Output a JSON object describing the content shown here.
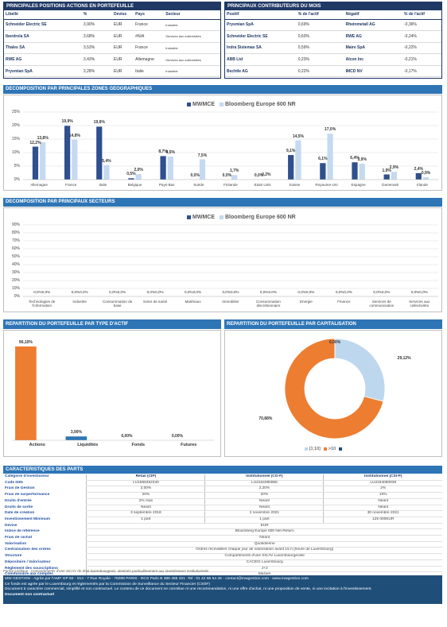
{
  "positions": {
    "title": "PRINCIPALES POSITIONS ACTIONS EN PORTEFEUILLE",
    "columns": [
      "Libellé",
      "%",
      "Devise",
      "Pays",
      "Secteur"
    ],
    "rows": [
      [
        "Schneider Electric SE",
        "3,90%",
        "EUR",
        "France",
        "Industrie"
      ],
      [
        "Iberdrola SA",
        "3,68%",
        "EUR",
        "#N/A",
        "Services aux collectivités"
      ],
      [
        "Thales SA",
        "3,53%",
        "EUR",
        "France",
        "Industrie"
      ],
      [
        "RWE AG",
        "3,43%",
        "EUR",
        "Allemagne",
        "Services aux collectivités"
      ],
      [
        "Prysmian SpA",
        "3,28%",
        "EUR",
        "Italie",
        "Industrie"
      ]
    ]
  },
  "contributors": {
    "title": "PRINCIPAUX CONTRIBUTEURS DU MOIS",
    "columns": [
      "Positif",
      "% de l'actif",
      "Négatif",
      "% de l'actif"
    ],
    "rows": [
      [
        "Prysmian SpA",
        "0,69%",
        "Rheinmetall AG",
        "-0,36%"
      ],
      [
        "Schneider Electric SE",
        "0,60%",
        "RWE AG",
        "-0,24%"
      ],
      [
        "Indra Sistemas SA",
        "0,59%",
        "Maire SpA",
        "-0,22%"
      ],
      [
        "ABB Ltd",
        "0,23%",
        "Alcon Inc",
        "-0,21%"
      ],
      [
        "Bechtle AG",
        "0,22%",
        "IMCD NV",
        "-0,17%"
      ]
    ]
  },
  "chart_data": [
    {
      "type": "bar",
      "title": "DECOMPOSITION PAR PRINCIPALES ZONES GEOGRAPHIQUES",
      "grid": true,
      "categories": [
        "Allemagne",
        "France",
        "Italie",
        "Belgique",
        "Pays-Bas",
        "Suède",
        "Finlande",
        "Etats Unis",
        "Suisse",
        "Royaume-Uni",
        "Espagne",
        "Danemark",
        "Irlande"
      ],
      "series": [
        {
          "name": "MWMCE",
          "color": "#2f4f8f",
          "values": [
            12.2,
            19.9,
            19.6,
            0.5,
            8.7,
            0.0,
            0.0,
            0.0,
            9.1,
            6.1,
            6.4,
            1.9,
            2.4
          ],
          "value_labels": [
            "12,2%",
            "19,9%",
            "19,6%",
            "0,5%",
            "8,7%",
            "0,0%",
            "0,0%",
            "0,0%",
            "9,1%",
            "6,1%",
            "6,4%",
            "1,9%",
            "2,4%"
          ]
        },
        {
          "name": "Bloomberg Europe 600 NR",
          "color": "#c5d9f1",
          "values": [
            13.8,
            14.8,
            5.4,
            2.0,
            8.5,
            7.5,
            1.7,
            0.2,
            14.5,
            17.0,
            5.9,
            2.9,
            0.9
          ],
          "value_labels": [
            "13,8%",
            "14,8%",
            "5,4%",
            "2,0%",
            "8,5%",
            "7,5%",
            "1,7%",
            "0,2%",
            "14,5%",
            "17,0%",
            "5,9%",
            "2,9%",
            "0,9%"
          ]
        }
      ],
      "ylim": [
        0,
        25
      ],
      "yticks": [
        {
          "value": 0,
          "label": "0%"
        },
        {
          "value": 5,
          "label": "5%"
        },
        {
          "value": 10,
          "label": "10%"
        },
        {
          "value": 15,
          "label": "15%"
        },
        {
          "value": 20,
          "label": "20%"
        },
        {
          "value": 25,
          "label": "25%"
        }
      ]
    },
    {
      "type": "bar",
      "title": "DECOMPOSITION PAR PRINCIPAUX SECTEURS",
      "grid": true,
      "categories": [
        "Technologies de l'information",
        "Industrie",
        "Consommation de base",
        "Soins de santé",
        "Matériaux",
        "Immobilier",
        "Consommation discrétionnaire",
        "Energie",
        "Finance",
        "Services de communication",
        "Services aux collectivités"
      ],
      "series": [
        {
          "name": "MWMCE",
          "color": "#2f4f8f",
          "values": [
            0,
            0,
            0,
            0,
            0,
            0,
            0,
            0,
            0,
            0,
            0
          ],
          "value_labels": [
            "0,0%",
            "0,0%",
            "0,0%",
            "0,0%",
            "0,0%",
            "0,0%",
            "0,0%",
            "0,0%",
            "0,0%",
            "0,0%",
            "0,0%"
          ]
        },
        {
          "name": "Bloomberg Europe 600 NR",
          "color": "#c5d9f1",
          "values": [
            0,
            0,
            0,
            0,
            0,
            0,
            0,
            0,
            0,
            0,
            0
          ],
          "value_labels": [
            "0,0%",
            "0,0%",
            "0,0%",
            "0,0%",
            "0,0%",
            "0,0%",
            "0,0%",
            "0,0%",
            "0,0%",
            "0,0%",
            "0,0%"
          ]
        }
      ],
      "ylim": [
        0,
        90
      ],
      "yticks": [
        {
          "value": 0,
          "label": "0%"
        },
        {
          "value": 10,
          "label": "10%"
        },
        {
          "value": 20,
          "label": "20%"
        },
        {
          "value": 30,
          "label": "30%"
        },
        {
          "value": 40,
          "label": "40%"
        },
        {
          "value": 50,
          "label": "50%"
        },
        {
          "value": 60,
          "label": "60%"
        },
        {
          "value": 70,
          "label": "70%"
        },
        {
          "value": 80,
          "label": "80%"
        },
        {
          "value": 90,
          "label": "90%"
        }
      ]
    },
    {
      "type": "bar",
      "title": "REPARTITION DU PORTEFEUILLE PAR TYPE D'ACTIF",
      "categories": [
        "Actions",
        "Liquidités",
        "Fonds",
        "Futures"
      ],
      "values": [
        96.1,
        3.9,
        0.0,
        0.0
      ],
      "value_labels": [
        "96,10%",
        "3,90%",
        "0,00%",
        "0,00%"
      ],
      "colors": [
        "#ed7d31",
        "#2e75b6",
        "#2e75b6",
        "#2e75b6"
      ]
    },
    {
      "type": "pie",
      "title": "REPARTITION DU PORTEFEUILLE PAR CAPITALISATION",
      "categories": [
        "[1;10]",
        ">10",
        null
      ],
      "values": [
        29.12,
        70.88,
        0.0
      ],
      "value_labels": [
        "29,12%",
        "70,88%",
        "0,00%"
      ],
      "colors": [
        "#bdd7ee",
        "#ed7d31",
        "#1f4e79"
      ]
    }
  ],
  "characteristics": {
    "title": "CARACTERISTIQUES DES PARTS",
    "rows": [
      [
        "Catégorie d'investisseur",
        "Retail (CIP)",
        "Institutionnel (CG-F)",
        "Institutionnel (CSI-P)"
      ],
      [
        "Code ISIN",
        "LU1868452340",
        "LU2334080855",
        "LU2334080939"
      ],
      [
        "Frais de Gestion",
        "2,00%",
        "2,20%",
        "2%"
      ],
      [
        "Frais de surperformance",
        "20%",
        "20%",
        "10%"
      ],
      [
        "Droits d'entrée",
        "2% max",
        "Néant",
        "Néant"
      ],
      [
        "Droits de sortie",
        "Néant",
        "Néant",
        "Néant"
      ],
      [
        "Date de création",
        "3 septembre 2018",
        "2 novembre 2021",
        "30 novembre 2021"
      ],
      [
        "Investissement Minimum",
        "1 part",
        "1 part",
        "125 000EUR"
      ],
      [
        "Devise",
        "EUR"
      ],
      [
        "Indice de référence",
        "Bloomberg Europe 600 Net Return"
      ],
      [
        "Frais de rachat",
        "Néant"
      ],
      [
        "Valorisation",
        "Quotidienne"
      ],
      [
        "Centralisation des ordres",
        "Ordres recevables chaque jour de valorisation avant 15 h (heure de Luxembourg)"
      ],
      [
        "Structure",
        "Compartiments d'une SICAV Luxembourgeoise"
      ],
      [
        "Dépositaire / Valorisateur",
        "CACEIS Luxembourg"
      ],
      [
        "Règlement des souscriptions",
        "J+2"
      ],
      [
        "Commissaire aux comptes",
        "Mazars"
      ]
    ]
  },
  "footer": {
    "legal_form": "Forme juridique : Compartiments d'une SICAV de droit luxembourgeois, destinés particulièrement aux investisseurs institutionnels",
    "company": "MW GESTION - Agrée par l'AMF GP 92 - 014 - 7 Rue Royale - 75008 PARIS - RCS Paris B 388 455 321 -Tel : 01 42 86 54 45 - contact@mwgestion.com - www.mwgestion.com",
    "regulation": "Ce fonds est agrée par le Luxembourg et réglementés par la Commission de Surveillance du Secteur Financier (CSSF)",
    "disclaimer": "Document à caractère commercial, simplifié et non contractuel. Le contenu de ce document ne constitue ni une recommandation, ni une offre d'achat, ni une proposition de vente, ni une incitation à l'investissement.",
    "note": "Document non contractuel"
  }
}
